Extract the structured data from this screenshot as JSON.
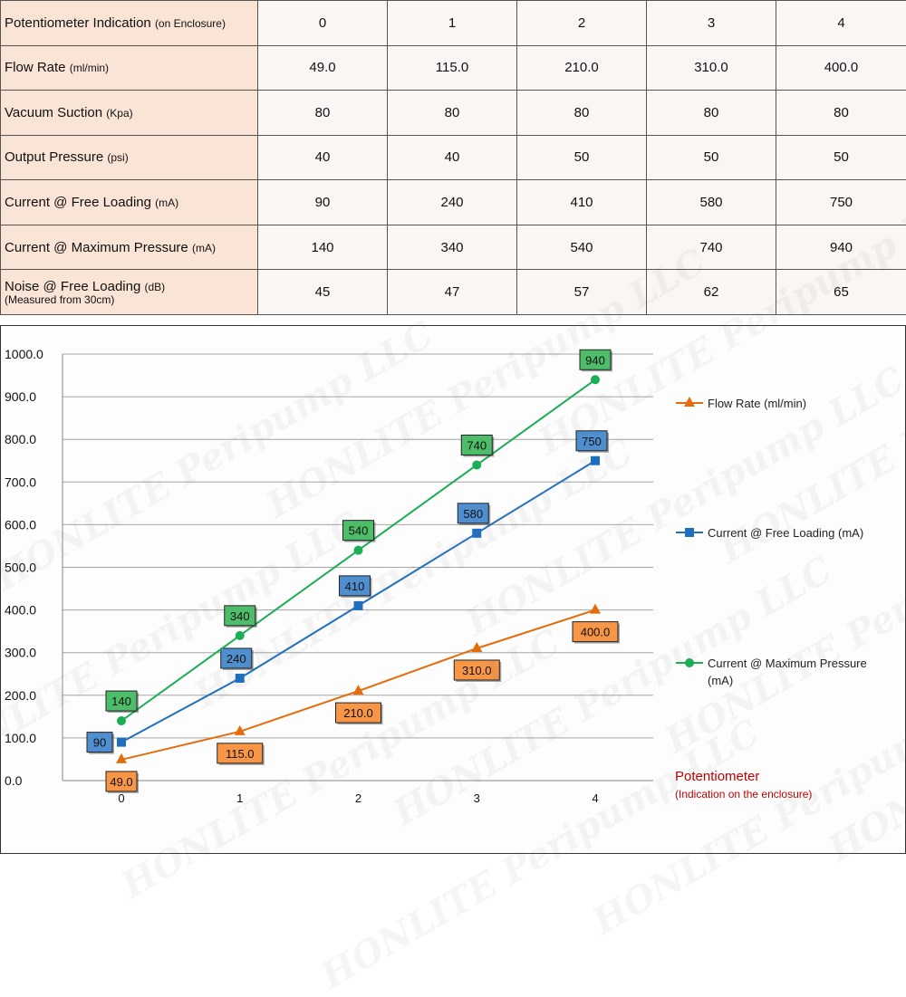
{
  "table": {
    "rows": [
      {
        "label": "Potentiometer Indication",
        "unit": "(on Enclosure)",
        "sub": "",
        "values": [
          "0",
          "1",
          "2",
          "3",
          "4"
        ]
      },
      {
        "label": "Flow Rate",
        "unit": "(ml/min)",
        "sub": "",
        "values": [
          "49.0",
          "115.0",
          "210.0",
          "310.0",
          "400.0"
        ]
      },
      {
        "label": "Vacuum Suction",
        "unit": "(Kpa)",
        "sub": "",
        "values": [
          "80",
          "80",
          "80",
          "80",
          "80"
        ]
      },
      {
        "label": "Output Pressure",
        "unit": "(psi)",
        "sub": "",
        "values": [
          "40",
          "40",
          "50",
          "50",
          "50"
        ]
      },
      {
        "label": "Current @ Free Loading",
        "unit": "(mA)",
        "sub": "",
        "values": [
          "90",
          "240",
          "410",
          "580",
          "750"
        ]
      },
      {
        "label": "Current @ Maximum Pressure",
        "unit": "(mA)",
        "sub": "",
        "values": [
          "140",
          "340",
          "540",
          "740",
          "940"
        ]
      },
      {
        "label": "Noise @ Free Loading",
        "unit": "(dB)",
        "sub": "(Measured from 30cm)",
        "values": [
          "45",
          "47",
          "57",
          "62",
          "65"
        ]
      }
    ]
  },
  "watermark": {
    "text": "HONLITE Peripump LLC"
  },
  "chart_data": {
    "type": "line",
    "title": "",
    "xlabel": "Potentiometer",
    "xlabel_sub": "(Indication on the enclosure)",
    "ylabel": "",
    "x": [
      0,
      1,
      2,
      3,
      4
    ],
    "ylim": [
      0,
      1000
    ],
    "yticks": [
      "0.0",
      "100.0",
      "200.0",
      "300.0",
      "400.0",
      "500.0",
      "600.0",
      "700.0",
      "800.0",
      "900.0",
      "1000.0"
    ],
    "grid": true,
    "legend_position": "right",
    "series": [
      {
        "name": "Flow Rate (ml/min)",
        "values": [
          49,
          115,
          210,
          310,
          400
        ],
        "labels": [
          "49.0",
          "115.0",
          "210.0",
          "310.0",
          "400.0"
        ],
        "marker": "triangle",
        "color": "#e46c0a",
        "label_fill": "#f79646",
        "label_position": "below"
      },
      {
        "name": "Current @ Free Loading (mA)",
        "values": [
          90,
          240,
          410,
          580,
          750
        ],
        "labels": [
          "90",
          "240",
          "410",
          "580",
          "750"
        ],
        "marker": "square",
        "color": "#1f6fbf",
        "label_fill": "#4f8fd0",
        "label_position": "left-above"
      },
      {
        "name": "Current @ Maximum Pressure (mA)",
        "values": [
          140,
          340,
          540,
          740,
          940
        ],
        "labels": [
          "140",
          "340",
          "540",
          "740",
          "940"
        ],
        "marker": "circle",
        "color": "#1cae55",
        "label_fill": "#4dbd6a",
        "label_position": "above"
      }
    ]
  },
  "colors": {
    "xlabel": "#c00000",
    "grid": "#a6a6a6",
    "axis": "#888888"
  }
}
